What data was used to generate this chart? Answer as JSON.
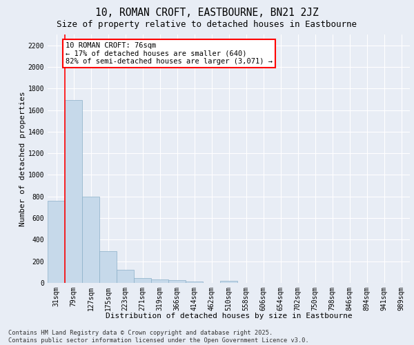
{
  "title_line1": "10, ROMAN CROFT, EASTBOURNE, BN21 2JZ",
  "title_line2": "Size of property relative to detached houses in Eastbourne",
  "xlabel": "Distribution of detached houses by size in Eastbourne",
  "ylabel": "Number of detached properties",
  "categories": [
    "31sqm",
    "79sqm",
    "127sqm",
    "175sqm",
    "223sqm",
    "271sqm",
    "319sqm",
    "366sqm",
    "414sqm",
    "462sqm",
    "510sqm",
    "558sqm",
    "606sqm",
    "654sqm",
    "702sqm",
    "750sqm",
    "798sqm",
    "846sqm",
    "894sqm",
    "941sqm",
    "989sqm"
  ],
  "values": [
    760,
    1690,
    800,
    295,
    120,
    42,
    30,
    25,
    15,
    0,
    20,
    0,
    0,
    0,
    0,
    0,
    0,
    0,
    0,
    0,
    0
  ],
  "bar_color": "#c6d9ea",
  "bar_edge_color": "#8aafc8",
  "ylim": [
    0,
    2300
  ],
  "yticks": [
    0,
    200,
    400,
    600,
    800,
    1000,
    1200,
    1400,
    1600,
    1800,
    2000,
    2200
  ],
  "annotation_text": "10 ROMAN CROFT: 76sqm\n← 17% of detached houses are smaller (640)\n82% of semi-detached houses are larger (3,071) →",
  "vline_x": 0.5,
  "footer_line1": "Contains HM Land Registry data © Crown copyright and database right 2025.",
  "footer_line2": "Contains public sector information licensed under the Open Government Licence v3.0.",
  "background_color": "#e8edf5",
  "grid_color": "#ffffff",
  "title_fontsize": 10.5,
  "subtitle_fontsize": 9.0,
  "axis_label_fontsize": 8.0,
  "tick_fontsize": 7.0,
  "annotation_fontsize": 7.5,
  "footer_fontsize": 6.2
}
